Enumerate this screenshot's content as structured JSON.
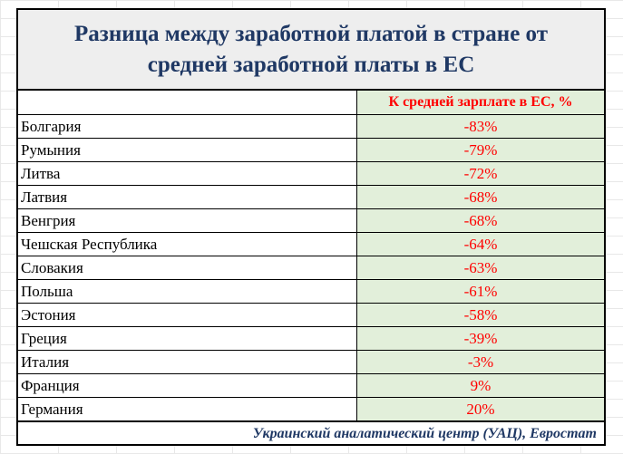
{
  "title": "Разница между заработной платой в стране от средней заработной платы в ЕС",
  "column_header": "К средней зарплате в ЕС, %",
  "rows": [
    {
      "country": "Болгария",
      "value": "-83%"
    },
    {
      "country": "Румыния",
      "value": "-79%"
    },
    {
      "country": "Литва",
      "value": "-72%"
    },
    {
      "country": "Латвия",
      "value": "-68%"
    },
    {
      "country": "Венгрия",
      "value": "-68%"
    },
    {
      "country": "Чешская Республика",
      "value": "-64%"
    },
    {
      "country": "Словакия",
      "value": "-63%"
    },
    {
      "country": "Польша",
      "value": "-61%"
    },
    {
      "country": "Эстония",
      "value": "-58%"
    },
    {
      "country": "Греция",
      "value": "-39%"
    },
    {
      "country": "Италия",
      "value": "-3%"
    },
    {
      "country": "Франция",
      "value": "9%"
    },
    {
      "country": "Германия",
      "value": "20%"
    }
  ],
  "source": "Украинский аналатический центр (УАЦ), Евростат",
  "colors": {
    "title_text": "#1f3864",
    "value_text": "#ff0000",
    "value_fill": "#e2efda",
    "title_fill": "#eeeeee"
  }
}
